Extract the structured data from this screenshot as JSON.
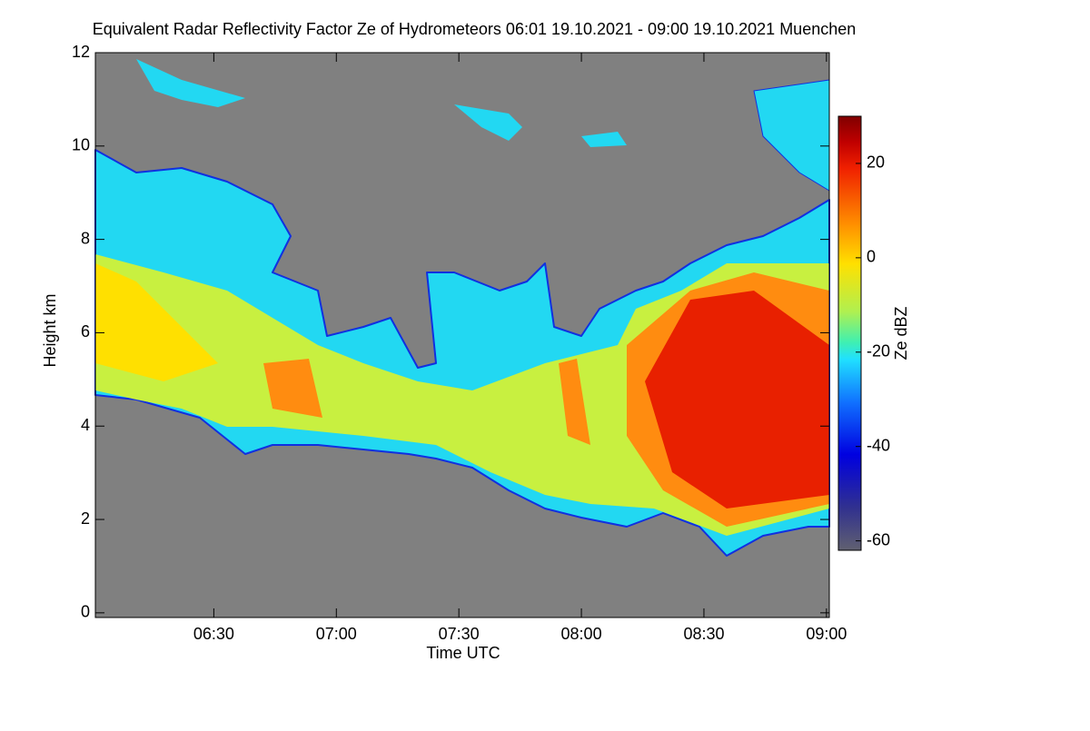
{
  "chart_data": {
    "type": "heatmap",
    "title": "Equivalent Radar Reflectivity Factor Ze of Hydrometeors   06:01 19.10.2021 - 09:00 19.10.2021 Muenchen",
    "x_label": "Time UTC",
    "y_label": "Height km",
    "colorbar_label": "Ze dBZ",
    "xlim": [
      361,
      540.7
    ],
    "xticks": [
      {
        "value": 390,
        "label": "06:30"
      },
      {
        "value": 420,
        "label": "07:00"
      },
      {
        "value": 450,
        "label": "07:30"
      },
      {
        "value": 480,
        "label": "08:00"
      },
      {
        "value": 510,
        "label": "08:30"
      },
      {
        "value": 540,
        "label": "09:00"
      }
    ],
    "ylim": [
      -0.1,
      12
    ],
    "yticks": [
      0,
      2,
      4,
      6,
      8,
      10,
      12
    ],
    "clim": [
      -62,
      30
    ],
    "cticks": [
      -60,
      -40,
      -20,
      0,
      20
    ]
  }
}
